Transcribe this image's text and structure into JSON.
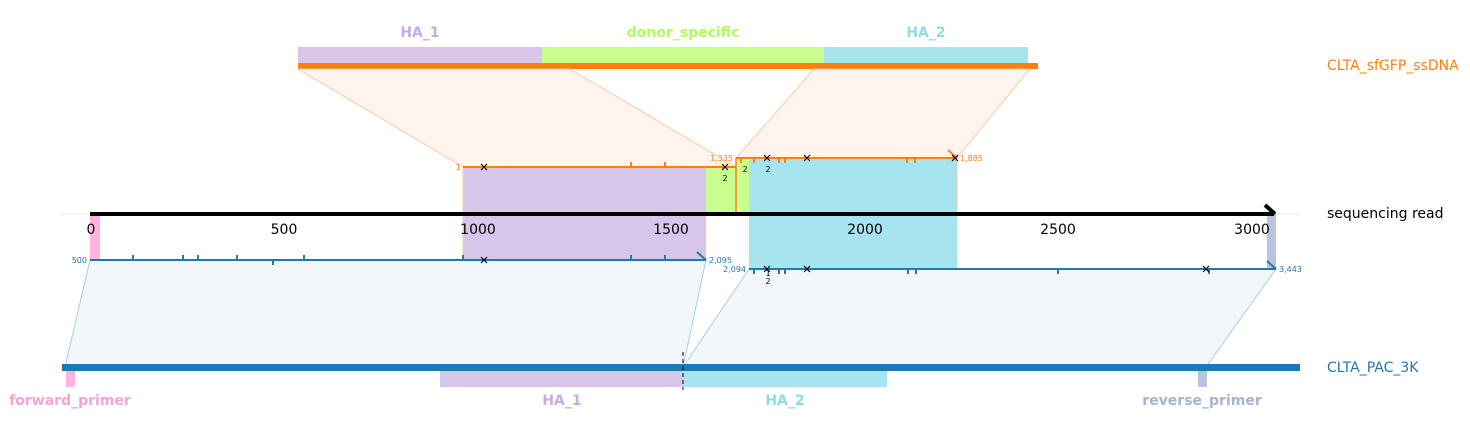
{
  "diagram": {
    "donor": {
      "name": "CLTA_sfGFP_ssDNA",
      "color": "#ff7f0e",
      "features": [
        {
          "name": "HA_1",
          "color": "#d8c6ea",
          "label_color": "#c4aee0"
        },
        {
          "name": "donor_specific",
          "color": "#c8ff8e",
          "label_color": "#adff5a"
        },
        {
          "name": "HA_2",
          "color": "#a6e4ef",
          "label_color": "#8fdbe8"
        }
      ],
      "alignment_1": {
        "start_label": "1",
        "end_label": "1,335"
      },
      "alignment_2": {
        "start_label": "",
        "end_label": "1,885"
      },
      "tiny_labels": [
        "2",
        "2",
        "2"
      ]
    },
    "read": {
      "name": "sequencing read",
      "axis_ticks": [
        "0",
        "500",
        "1000",
        "1500",
        "2000",
        "2500",
        "3000"
      ]
    },
    "reference": {
      "name": "CLTA_PAC_3K",
      "color": "#1f77b4",
      "features": [
        {
          "name": "forward_primer",
          "color": "#ffb3dd",
          "label_color": "#f7a3d3"
        },
        {
          "name": "HA_1",
          "color": "#d8c6ea",
          "label_color": "#c4aee0"
        },
        {
          "name": "HA_2",
          "color": "#a6e4ef",
          "label_color": "#8fdbe8"
        },
        {
          "name": "reverse_primer",
          "color": "#b8c4de",
          "label_color": "#a4b4d4"
        }
      ],
      "alignment_1": {
        "start_label": "500",
        "end_label": "2,095"
      },
      "alignment_2": {
        "start_label": "2,094",
        "end_label": "3,443"
      },
      "tiny_labels": [
        "1",
        "2"
      ]
    }
  }
}
